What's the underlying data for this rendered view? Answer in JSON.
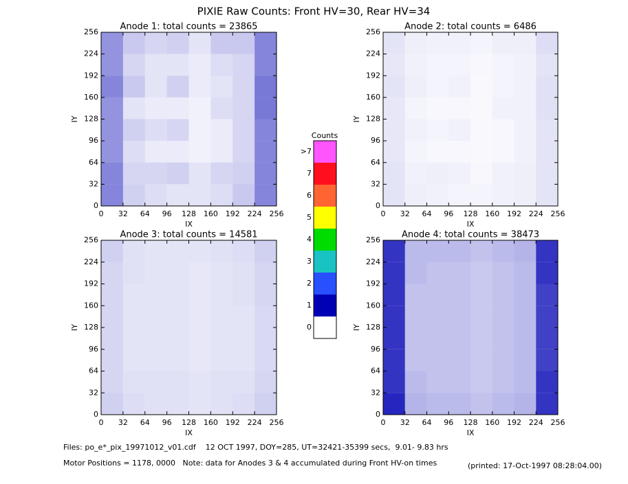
{
  "title": "PIXIE Raw Counts:  Front HV=30, Rear HV=34",
  "chart_data": [
    {
      "type": "heatmap",
      "title": "Anode 1: total counts = 23865",
      "xlabel": "IX",
      "ylabel": "IY",
      "xlim": [
        0,
        256
      ],
      "ylim": [
        0,
        256
      ],
      "xticks": [
        0,
        32,
        64,
        96,
        128,
        160,
        192,
        224,
        256
      ],
      "yticks": [
        0,
        32,
        64,
        96,
        128,
        160,
        192,
        224,
        256
      ],
      "values": [
        [
          0.9,
          0.35,
          0.25,
          0.2,
          0.2,
          0.25,
          0.4,
          0.9
        ],
        [
          0.9,
          0.3,
          0.3,
          0.35,
          0.2,
          0.3,
          0.35,
          0.9
        ],
        [
          0.8,
          0.25,
          0.15,
          0.15,
          0.1,
          0.15,
          0.3,
          0.9
        ],
        [
          0.8,
          0.35,
          0.25,
          0.3,
          0.1,
          0.15,
          0.3,
          0.9
        ],
        [
          0.8,
          0.2,
          0.15,
          0.15,
          0.1,
          0.25,
          0.3,
          1.0
        ],
        [
          0.9,
          0.4,
          0.2,
          0.35,
          0.15,
          0.2,
          0.3,
          1.0
        ],
        [
          0.8,
          0.3,
          0.2,
          0.2,
          0.15,
          0.25,
          0.3,
          0.9
        ],
        [
          0.8,
          0.4,
          0.3,
          0.35,
          0.2,
          0.4,
          0.4,
          0.9
        ]
      ]
    },
    {
      "type": "heatmap",
      "title": "Anode 2: total counts = 6486",
      "xlabel": "IX",
      "ylabel": "IY",
      "xlim": [
        0,
        256
      ],
      "ylim": [
        0,
        256
      ],
      "xticks": [
        0,
        32,
        64,
        96,
        128,
        160,
        192,
        224,
        256
      ],
      "yticks": [
        0,
        32,
        64,
        96,
        128,
        160,
        192,
        224,
        256
      ],
      "values": [
        [
          0.2,
          0.12,
          0.1,
          0.08,
          0.08,
          0.1,
          0.12,
          0.2
        ],
        [
          0.2,
          0.1,
          0.12,
          0.1,
          0.06,
          0.1,
          0.12,
          0.2
        ],
        [
          0.18,
          0.08,
          0.06,
          0.06,
          0.05,
          0.06,
          0.1,
          0.2
        ],
        [
          0.18,
          0.1,
          0.08,
          0.1,
          0.05,
          0.06,
          0.1,
          0.2
        ],
        [
          0.18,
          0.08,
          0.06,
          0.06,
          0.05,
          0.1,
          0.1,
          0.22
        ],
        [
          0.2,
          0.12,
          0.08,
          0.1,
          0.05,
          0.08,
          0.1,
          0.22
        ],
        [
          0.18,
          0.1,
          0.08,
          0.08,
          0.06,
          0.08,
          0.1,
          0.2
        ],
        [
          0.2,
          0.12,
          0.1,
          0.1,
          0.08,
          0.12,
          0.12,
          0.25
        ]
      ]
    },
    {
      "type": "heatmap",
      "title": "Anode 3: total counts = 14581",
      "xlabel": "IX",
      "ylabel": "IY",
      "xlim": [
        0,
        256
      ],
      "ylim": [
        0,
        256
      ],
      "xticks": [
        0,
        32,
        64,
        96,
        128,
        160,
        192,
        224,
        256
      ],
      "yticks": [
        0,
        32,
        64,
        96,
        128,
        160,
        192,
        224,
        256
      ],
      "values": [
        [
          0.35,
          0.25,
          0.22,
          0.22,
          0.2,
          0.22,
          0.25,
          0.35
        ],
        [
          0.3,
          0.22,
          0.22,
          0.22,
          0.2,
          0.22,
          0.22,
          0.3
        ],
        [
          0.3,
          0.2,
          0.2,
          0.2,
          0.18,
          0.2,
          0.2,
          0.28
        ],
        [
          0.3,
          0.2,
          0.2,
          0.2,
          0.18,
          0.2,
          0.2,
          0.28
        ],
        [
          0.3,
          0.2,
          0.2,
          0.2,
          0.18,
          0.2,
          0.2,
          0.28
        ],
        [
          0.3,
          0.2,
          0.2,
          0.2,
          0.18,
          0.2,
          0.22,
          0.3
        ],
        [
          0.3,
          0.22,
          0.2,
          0.2,
          0.18,
          0.2,
          0.22,
          0.3
        ],
        [
          0.35,
          0.22,
          0.2,
          0.2,
          0.2,
          0.22,
          0.25,
          0.35
        ]
      ]
    },
    {
      "type": "heatmap",
      "title": "Anode 4: total counts = 38473",
      "xlabel": "IX",
      "ylabel": "IY",
      "xlim": [
        0,
        256
      ],
      "ylim": [
        0,
        256
      ],
      "xticks": [
        0,
        32,
        64,
        96,
        128,
        160,
        192,
        224,
        256
      ],
      "yticks": [
        0,
        32,
        64,
        96,
        128,
        160,
        192,
        224,
        256
      ],
      "values": [
        [
          1.6,
          0.55,
          0.5,
          0.5,
          0.45,
          0.5,
          0.55,
          1.5
        ],
        [
          1.5,
          0.5,
          0.45,
          0.45,
          0.4,
          0.45,
          0.5,
          1.5
        ],
        [
          1.5,
          0.45,
          0.45,
          0.45,
          0.4,
          0.45,
          0.5,
          1.4
        ],
        [
          1.5,
          0.45,
          0.45,
          0.45,
          0.4,
          0.45,
          0.5,
          1.4
        ],
        [
          1.5,
          0.45,
          0.45,
          0.45,
          0.4,
          0.45,
          0.5,
          1.4
        ],
        [
          1.5,
          0.45,
          0.45,
          0.45,
          0.4,
          0.45,
          0.5,
          1.4
        ],
        [
          1.5,
          0.5,
          0.45,
          0.45,
          0.4,
          0.45,
          0.5,
          1.5
        ],
        [
          1.5,
          0.5,
          0.5,
          0.5,
          0.45,
          0.5,
          0.55,
          1.5
        ]
      ]
    }
  ],
  "colorbar": {
    "title": "Counts",
    "ticks": [
      0,
      1,
      2,
      3,
      4,
      5,
      6,
      7,
      {
        "value": 8,
        "label": ">7"
      }
    ],
    "colors": [
      "#ffffff",
      "#0000b4",
      "#2850ff",
      "#19c3c3",
      "#00dc00",
      "#ffff00",
      "#ff6432",
      "#ff0f1e",
      "#ff55ff"
    ]
  },
  "footer": {
    "files": "Files: po_e*_pix_19971012_v01.cdf    12 OCT 1997, DOY=285, UT=32421-35399 secs,  9.01- 9.83 hrs",
    "motor": "Motor Positions = 1178, 0000   Note: data for Anodes 3 & 4 accumulated during Front HV-on times",
    "printed": "(printed: 17-Oct-1997 08:28:04.00)"
  }
}
